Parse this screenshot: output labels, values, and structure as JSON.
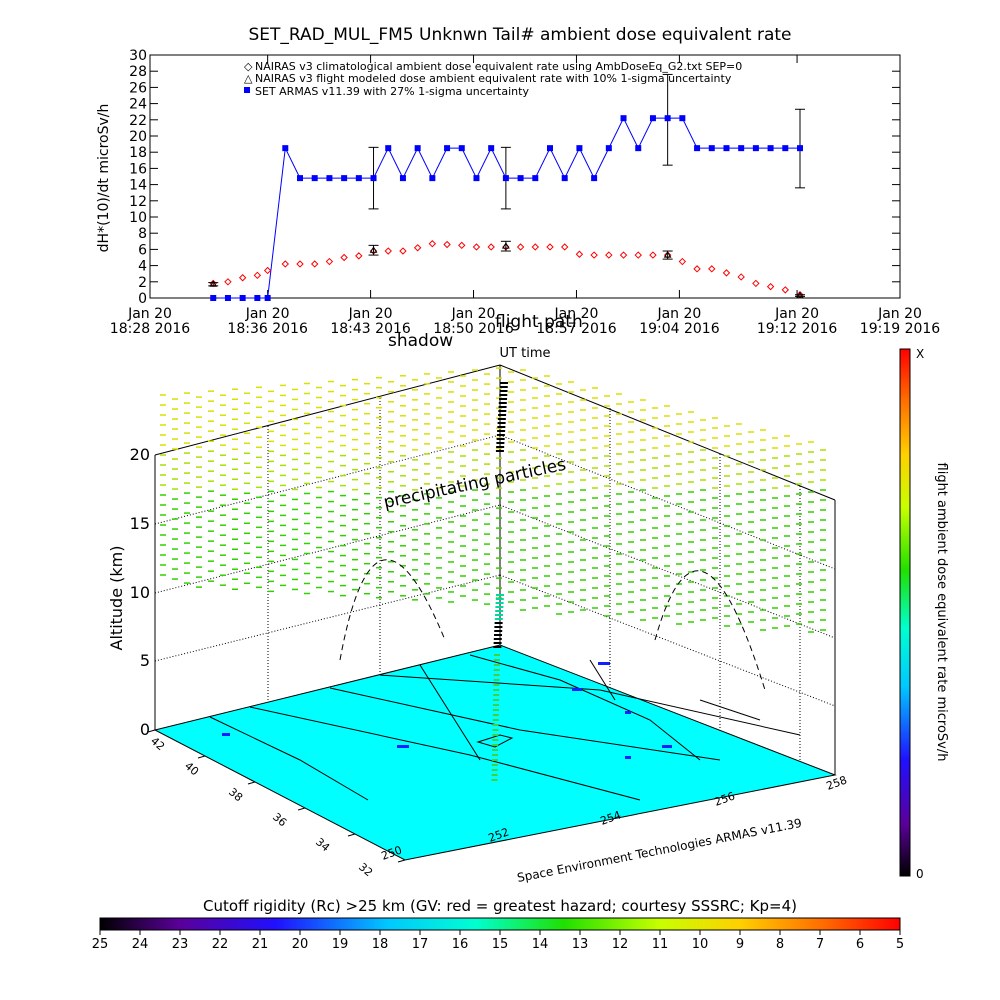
{
  "top_chart": {
    "title": "SET_RAD_MUL_FM5 Unknwn Tail#  ambient dose equivalent rate",
    "ylabel": "dH*(10)/dt microSv/h",
    "xlabel": "UT time",
    "legend": {
      "nairas_clim": "NAIRAS v3 climatological ambient dose equivalent rate using AmbDoseEq_G2.txt SEP=0",
      "nairas_flight": "NAIRAS v3 flight modeled dose ambient equivalent rate with 10% 1-sigma uncertainty",
      "armas": "SET ARMAS v11.39 with 27% 1-sigma uncertainty"
    }
  },
  "chart_data": [
    {
      "type": "line",
      "title": "SET_RAD_MUL_FM5 Unknwn Tail#  ambient dose equivalent rate",
      "xlabel": "UT time",
      "ylabel": "dH*(10)/dt microSv/h",
      "ylim": [
        0,
        30
      ],
      "yticks": [
        0,
        2,
        4,
        6,
        8,
        10,
        12,
        14,
        16,
        18,
        20,
        22,
        24,
        26,
        28,
        30
      ],
      "xlim_minutes": [
        0,
        51
      ],
      "xticks": [
        {
          "m": 0,
          "date": "Jan 20",
          "time": "18:28  2016"
        },
        {
          "m": 8,
          "date": "Jan 20",
          "time": "18:36  2016"
        },
        {
          "m": 15,
          "date": "Jan 20",
          "time": "18:43  2016"
        },
        {
          "m": 22,
          "date": "Jan 20",
          "time": "18:50  2016"
        },
        {
          "m": 29,
          "date": "Jan 20",
          "time": "18:57  2016"
        },
        {
          "m": 36,
          "date": "Jan 20",
          "time": "19:04  2016"
        },
        {
          "m": 44,
          "date": "Jan 20",
          "time": "19:12  2016"
        },
        {
          "m": 51,
          "date": "Jan 20",
          "time": "19:19  2016"
        }
      ],
      "grid": false,
      "legend_position": "top",
      "series": [
        {
          "name": "SET ARMAS v11.39 with 27% 1-sigma uncertainty",
          "color": "#0000ff",
          "marker": "filled-square",
          "x": [
            4.3,
            5.3,
            6.3,
            7.3,
            8.0,
            9.2,
            10.2,
            11.2,
            12.2,
            13.2,
            14.2,
            15.2,
            16.2,
            17.2,
            18.2,
            19.2,
            20.2,
            21.2,
            22.2,
            23.2,
            24.2,
            25.2,
            26.2,
            27.2,
            28.2,
            29.2,
            30.2,
            31.2,
            32.2,
            33.2,
            34.2,
            35.2,
            36.2,
            37.2,
            38.2,
            39.2,
            40.2,
            41.2,
            42.2,
            43.2,
            44.2
          ],
          "y": [
            0,
            0,
            0,
            0,
            0,
            18.5,
            14.8,
            14.8,
            14.8,
            14.8,
            14.8,
            14.8,
            18.5,
            14.8,
            18.5,
            14.8,
            18.5,
            18.5,
            14.8,
            18.5,
            14.8,
            14.8,
            14.8,
            18.5,
            14.8,
            18.5,
            14.8,
            18.5,
            22.2,
            18.5,
            22.2,
            22.2,
            22.2,
            18.5,
            18.5,
            18.5,
            18.5,
            18.5,
            18.5,
            18.5,
            18.5
          ],
          "error_bars": [
            {
              "x": 4.3,
              "low": 0,
              "high": 0
            },
            {
              "x": 15.2,
              "low": 11.0,
              "high": 18.6
            },
            {
              "x": 24.2,
              "low": 11.0,
              "high": 18.6
            },
            {
              "x": 35.2,
              "low": 16.4,
              "high": 27.6
            },
            {
              "x": 44.2,
              "low": 13.6,
              "high": 23.3
            }
          ]
        },
        {
          "name": "NAIRAS v3 climatological ambient dose equivalent rate using AmbDoseEq_G2.txt SEP=0",
          "color": "#ff0000",
          "marker": "open-diamond",
          "x": [
            4.3,
            5.3,
            6.3,
            7.3,
            8.0,
            9.2,
            10.2,
            11.2,
            12.2,
            13.2,
            14.2,
            15.2,
            16.2,
            17.2,
            18.2,
            19.2,
            20.2,
            21.2,
            22.2,
            23.2,
            24.2,
            25.2,
            26.2,
            27.2,
            28.2,
            29.2,
            30.2,
            31.2,
            32.2,
            33.2,
            34.2,
            35.2,
            36.2,
            37.2,
            38.2,
            39.2,
            40.2,
            41.2,
            42.2,
            43.2,
            44.2
          ],
          "y": [
            1.8,
            2.0,
            2.5,
            2.8,
            3.4,
            4.2,
            4.2,
            4.2,
            4.5,
            5.0,
            5.2,
            5.8,
            5.8,
            5.8,
            6.2,
            6.7,
            6.6,
            6.5,
            6.3,
            6.3,
            6.3,
            6.3,
            6.3,
            6.3,
            6.3,
            5.4,
            5.3,
            5.3,
            5.3,
            5.3,
            5.3,
            5.3,
            4.5,
            3.6,
            3.6,
            3.1,
            2.6,
            1.8,
            1.4,
            1.0,
            0.4
          ]
        },
        {
          "name": "NAIRAS v3 flight modeled dose ambient equivalent rate with 10% 1-sigma uncertainty",
          "color": "#000000",
          "marker": "open-triangle",
          "x": [
            4.3,
            15.2,
            24.2,
            35.2,
            44.2
          ],
          "y": [
            1.7,
            5.9,
            6.4,
            5.3,
            0.3
          ],
          "error_bars": [
            {
              "x": 4.3,
              "low": 1.5,
              "high": 1.9
            },
            {
              "x": 15.2,
              "low": 5.3,
              "high": 6.5
            },
            {
              "x": 24.2,
              "low": 5.8,
              "high": 7.0
            },
            {
              "x": 35.2,
              "low": 4.8,
              "high": 5.8
            },
            {
              "x": 44.2,
              "low": 0.2,
              "high": 0.4
            }
          ]
        }
      ]
    },
    {
      "type": "scatter",
      "title": "",
      "xlabel": "Space Environment Technologies ARMAS v11.39",
      "ylabel": "Altitude (km)",
      "zlim": [
        0,
        20
      ],
      "zticks": [
        0,
        5,
        10,
        15,
        20
      ],
      "latitude_ticks": [
        32,
        34,
        36,
        38,
        40,
        42
      ],
      "longitude_ticks": [
        250,
        252,
        254,
        256,
        258
      ],
      "annotations": [
        "precipitating particles",
        "shadow",
        "flight path"
      ],
      "colorbar": {
        "label": "flight ambient dose equivalent rate microSv/h",
        "max_label": "X",
        "min_label": "0"
      }
    }
  ],
  "rigidity_bar": {
    "label": "Cutoff rigidity (Rc) >25 km (GV: red = greatest hazard; courtesy SSSRC; Kp=4)",
    "ticks": [
      "25",
      "24",
      "23",
      "22",
      "21",
      "20",
      "19",
      "18",
      "17",
      "16",
      "15",
      "14",
      "13",
      "12",
      "11",
      "10",
      "9",
      "8",
      "7",
      "6",
      "5"
    ]
  },
  "colors": {
    "armas": "#0000ff",
    "nairas_clim": "#ff0000",
    "nairas_flight": "#000000",
    "ground_plane": "#00ffff"
  }
}
